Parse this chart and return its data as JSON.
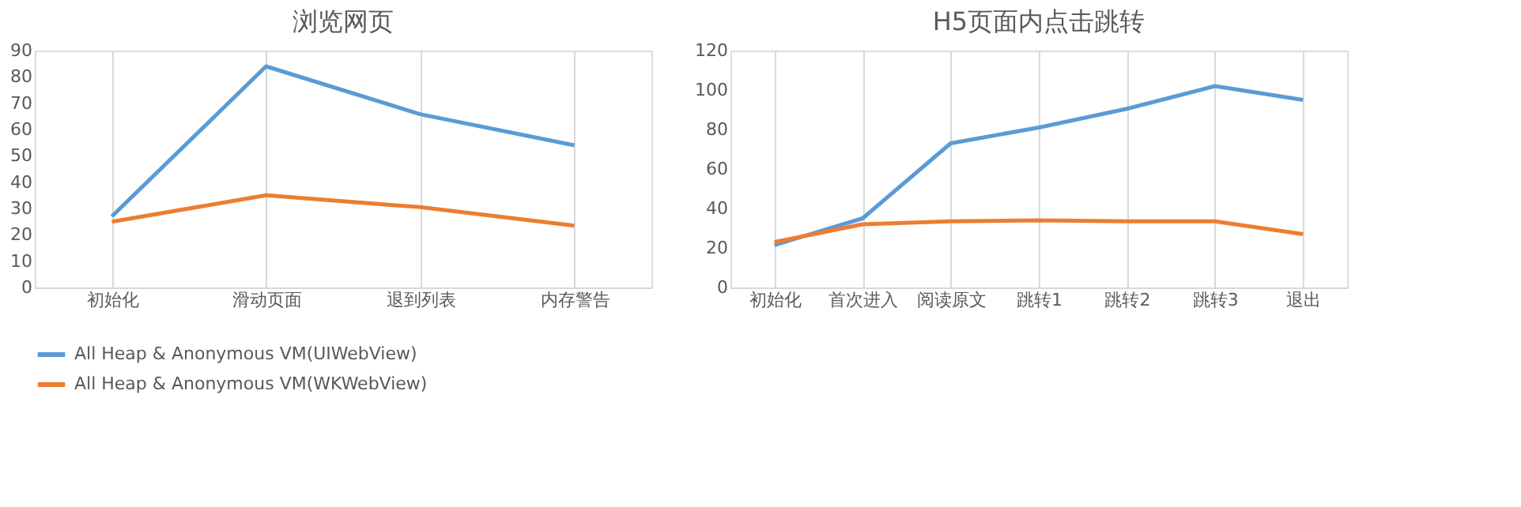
{
  "chart_data": [
    {
      "type": "line",
      "title": "浏览网页",
      "categories": [
        "初始化",
        "滑动页面",
        "退到列表",
        "内存警告"
      ],
      "series": [
        {
          "name": "All Heap & Anonymous VM(UIWebView)",
          "color": "#5b9bd5",
          "values": [
            27,
            84,
            65.8,
            54
          ]
        },
        {
          "name": "All Heap & Anonymous VM(WKWebView)",
          "color": "#ed7d31",
          "values": [
            25,
            35,
            30.5,
            23.5
          ]
        }
      ],
      "ylim": [
        0,
        90
      ],
      "yticks": [
        0,
        10,
        20,
        30,
        40,
        50,
        60,
        70,
        80,
        90
      ],
      "grid": "x",
      "legend": "bottom"
    },
    {
      "type": "line",
      "title": "H5页面内点击跳转",
      "categories": [
        "初始化",
        "首次进入",
        "阅读原文",
        "跳转1",
        "跳转2",
        "跳转3",
        "退出"
      ],
      "series": [
        {
          "name": "All Heap & Anonymous VM(UIWebView)",
          "color": "#5b9bd5",
          "values": [
            21.5,
            35,
            73,
            81,
            90.5,
            102,
            95
          ]
        },
        {
          "name": "All Heap & Anonymous VM(WKWebView)",
          "color": "#ed7d31",
          "values": [
            23,
            32,
            33.5,
            34,
            33.5,
            33.5,
            27
          ]
        }
      ],
      "ylim": [
        0,
        120
      ],
      "yticks": [
        0,
        20,
        40,
        60,
        80,
        100,
        120
      ],
      "grid": "x",
      "legend": "bottom"
    }
  ]
}
